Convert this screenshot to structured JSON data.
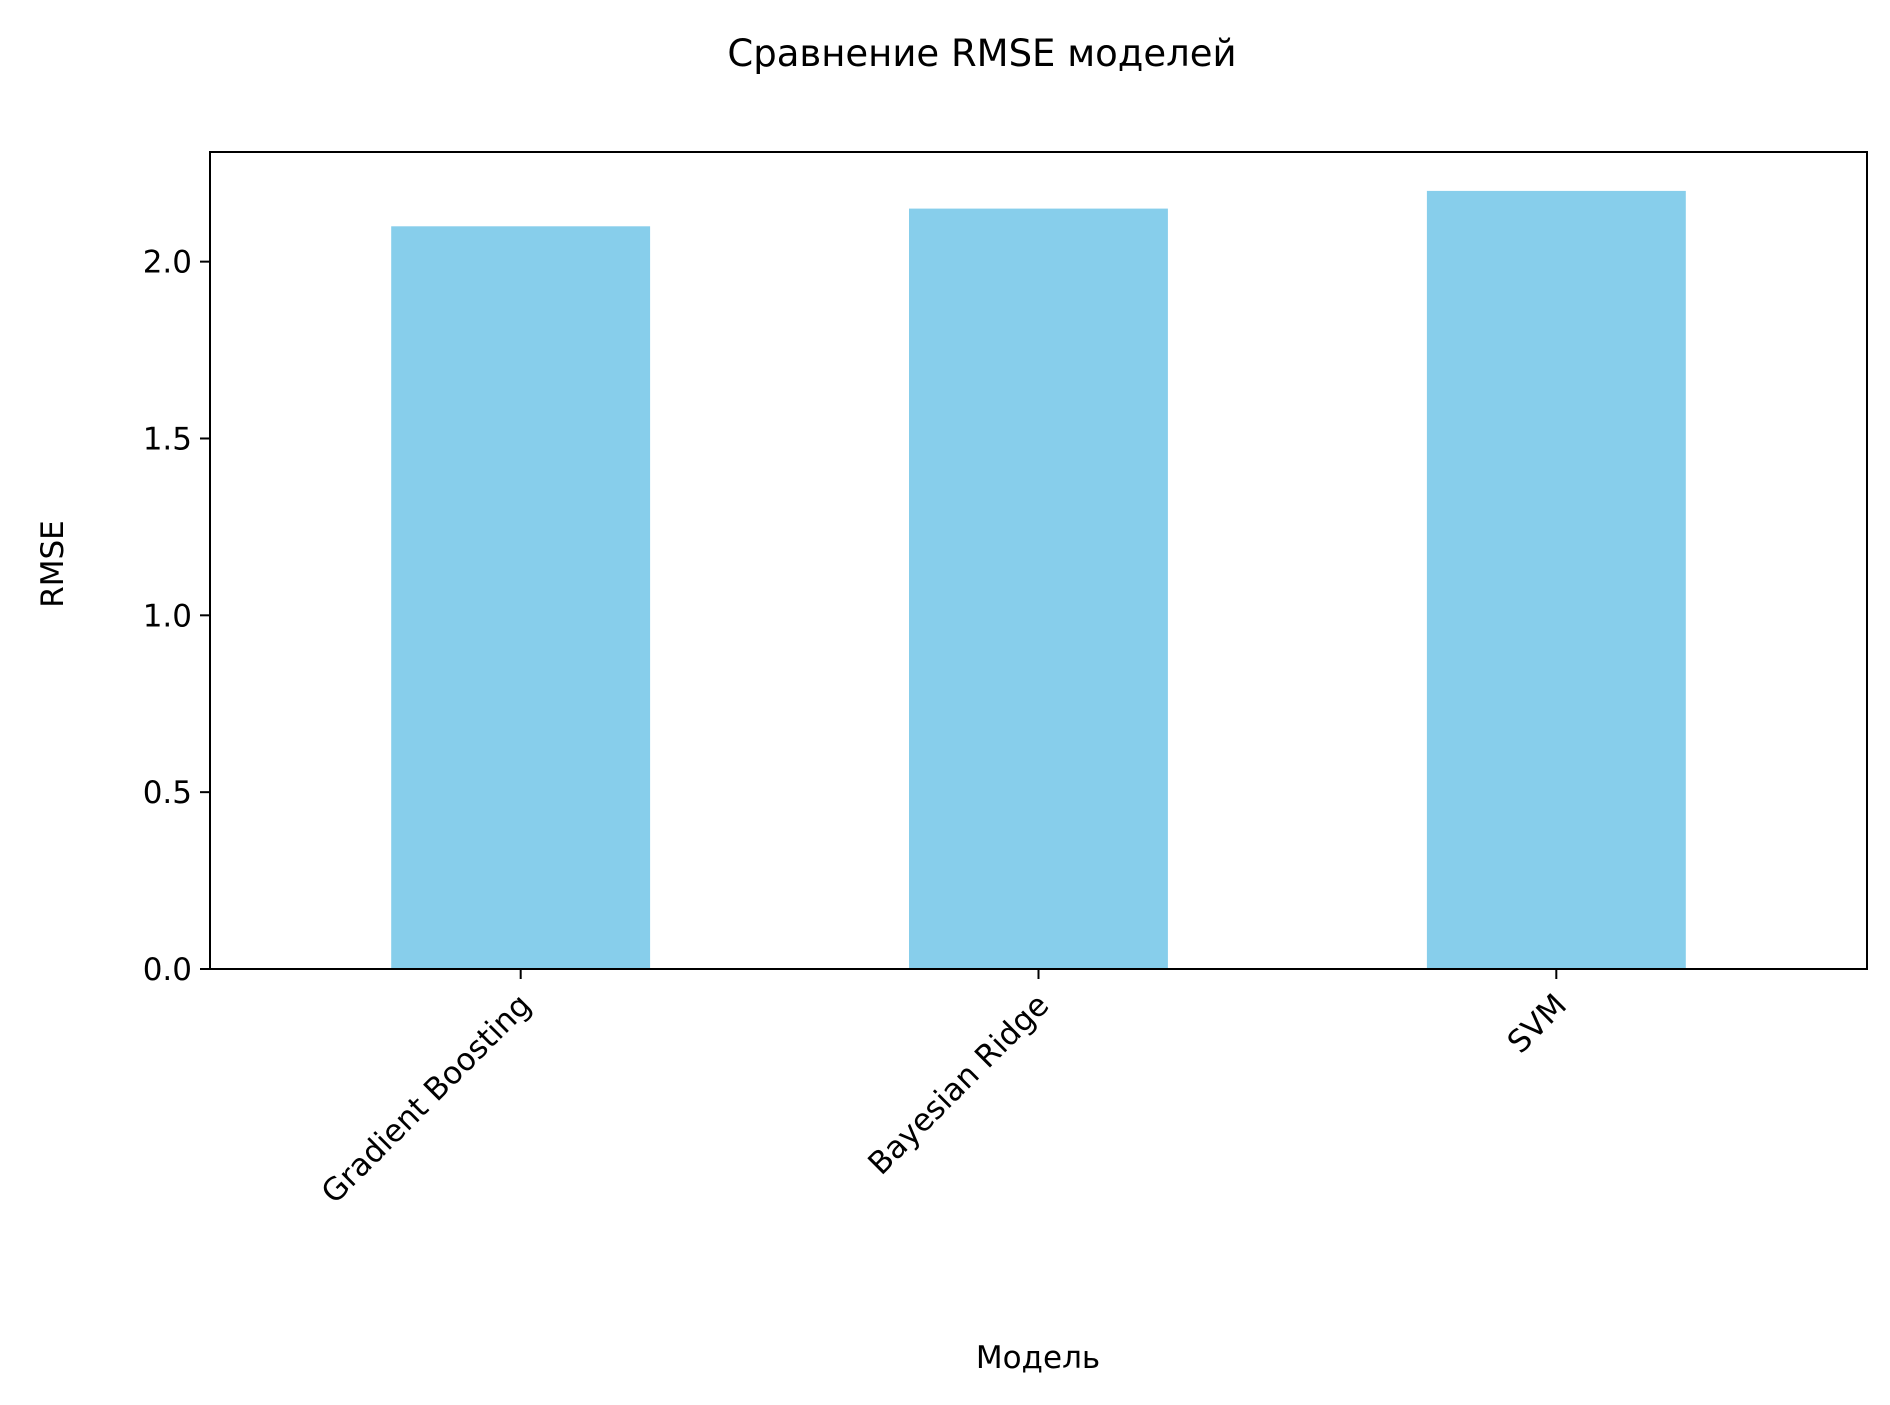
{
  "chart_data": {
    "type": "bar",
    "title": "Сравнение RMSE моделей",
    "xlabel": "Модель",
    "ylabel": "RMSE",
    "categories": [
      "Gradient Boosting",
      "Bayesian Ridge",
      "SVM"
    ],
    "values": [
      2.1,
      2.15,
      2.2
    ],
    "ylim": [
      0,
      2.31
    ],
    "yticks": [
      "0.0",
      "0.5",
      "1.0",
      "1.5",
      "2.0"
    ],
    "bar_color": "#87ceeb",
    "grid": false,
    "legend": "none"
  }
}
